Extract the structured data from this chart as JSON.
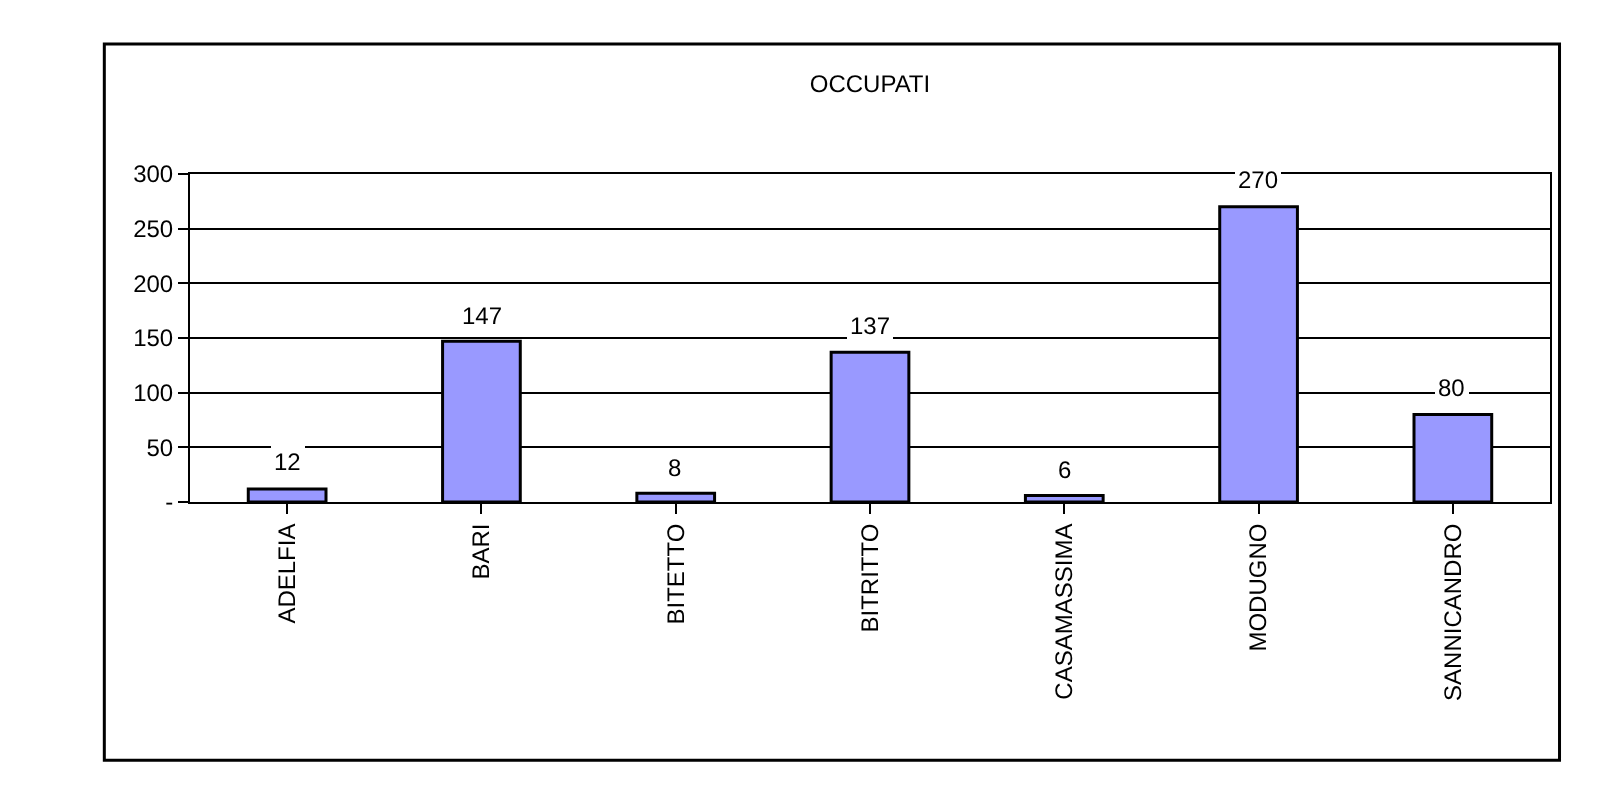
{
  "chart_data": {
    "type": "bar",
    "title": "OCCUPATI",
    "categories": [
      "ADELFIA",
      "BARI",
      "BITETTO",
      "BITRITTO",
      "CASAMASSIMA",
      "MODUGNO",
      "SANNICANDRO"
    ],
    "values": [
      12,
      147,
      8,
      137,
      6,
      270,
      80
    ],
    "color": "#9999ff",
    "ylim": [
      0,
      300
    ],
    "yticks": [
      {
        "value": 0,
        "label": "-"
      },
      50,
      100,
      150,
      200,
      250,
      300
    ],
    "grid": "y",
    "data_labels": true,
    "legend": false
  }
}
